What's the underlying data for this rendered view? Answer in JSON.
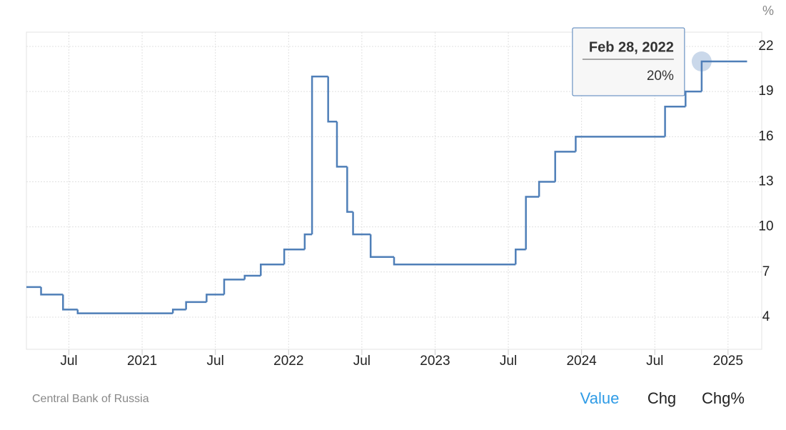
{
  "chart_data": {
    "type": "step-line",
    "unit": "%",
    "source": "Central Bank of Russia",
    "x": [
      2020.21,
      2020.31,
      2020.46,
      2020.56,
      2021.21,
      2021.3,
      2021.44,
      2021.56,
      2021.7,
      2021.81,
      2021.97,
      2022.11,
      2022.16,
      2022.27,
      2022.33,
      2022.4,
      2022.44,
      2022.56,
      2022.72,
      2023.55,
      2023.62,
      2023.71,
      2023.82,
      2023.96,
      2024.57,
      2024.71,
      2024.82,
      2025.13
    ],
    "series": [
      {
        "name": "Value",
        "color": "#4f7fb8",
        "values": [
          6,
          5.5,
          4.5,
          4.25,
          4.5,
          5,
          5.5,
          6.5,
          6.75,
          7.5,
          8.5,
          9.5,
          20,
          17,
          14,
          11,
          9.5,
          8,
          7.5,
          8.5,
          12,
          13,
          15,
          16,
          18,
          19,
          21,
          21
        ]
      }
    ],
    "xlim": [
      2020.21,
      2025.23
    ],
    "xticks": [
      {
        "value": 2020.5,
        "label": "Jul"
      },
      2021,
      {
        "value": 2021.5,
        "label": "Jul"
      },
      2022,
      {
        "value": 2022.5,
        "label": "Jul"
      },
      2023,
      {
        "value": 2023.5,
        "label": "Jul"
      },
      2024,
      {
        "value": 2024.5,
        "label": "Jul"
      },
      2025
    ],
    "ylim": [
      1.86,
      22.95
    ],
    "yticks": [
      4,
      7,
      10,
      13,
      16,
      19,
      22
    ],
    "grid": true,
    "tooltip": {
      "date": "Feb 28, 2022",
      "value": "20%"
    },
    "buttons": [
      "Value",
      "Chg",
      "Chg%"
    ],
    "active_button": 0
  }
}
